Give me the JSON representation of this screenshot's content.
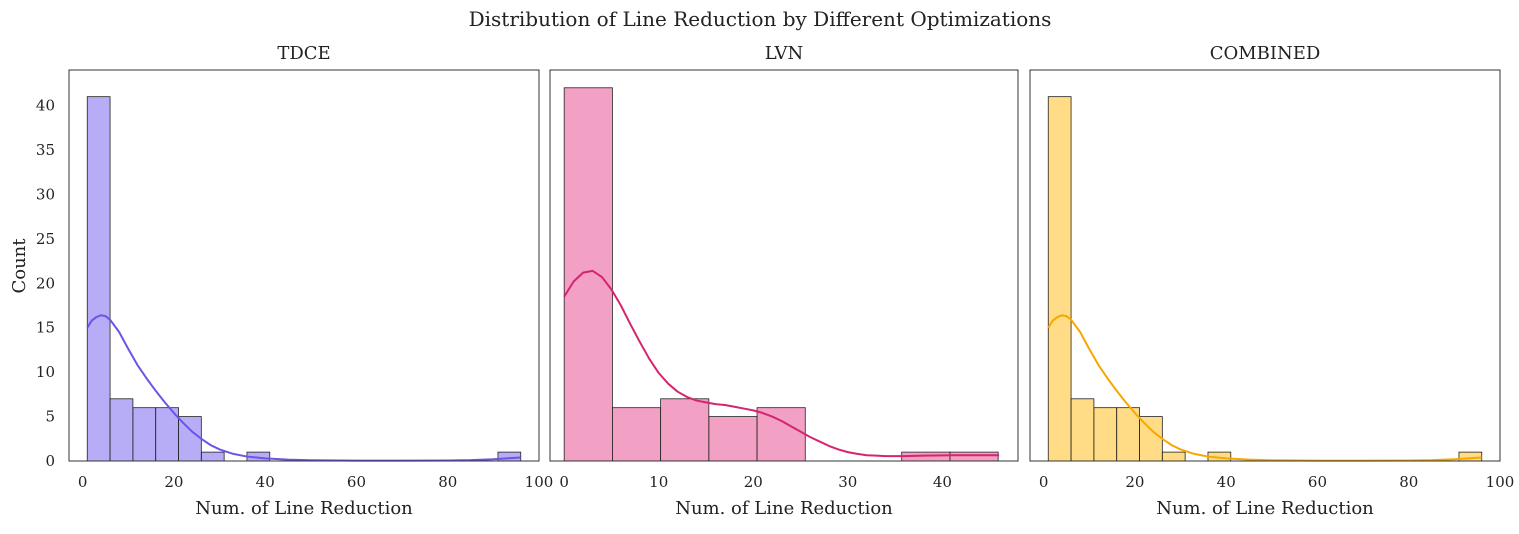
{
  "figure": {
    "title": "Distribution of Line Reduction by Different Optimizations",
    "ylabel": "Count"
  },
  "chart_data": [
    {
      "type": "bar",
      "title": "TDCE",
      "xlabel": "Num. of Line Reduction",
      "ylabel": "Count",
      "color": "#7b68ee",
      "xlim": [
        -3,
        100
      ],
      "ylim": [
        0,
        44
      ],
      "xticks": [
        0,
        20,
        40,
        60,
        80,
        100
      ],
      "yticks": [
        0,
        5,
        10,
        15,
        20,
        25,
        30,
        35,
        40
      ],
      "bin_edges": [
        1,
        6,
        11,
        16,
        21,
        26,
        31,
        36,
        41,
        46,
        51,
        56,
        61,
        66,
        71,
        76,
        81,
        86,
        91,
        96
      ],
      "counts": [
        41,
        7,
        6,
        6,
        5,
        1,
        0,
        1,
        0,
        0,
        0,
        0,
        0,
        0,
        0,
        0,
        0,
        0,
        1
      ],
      "kde": {
        "x": [
          1,
          2,
          3,
          4,
          5,
          6,
          8,
          10,
          12,
          14,
          16,
          18,
          20,
          22,
          24,
          26,
          28,
          30,
          33,
          36,
          40,
          45,
          50,
          60,
          70,
          80,
          85,
          90,
          93,
          96
        ],
        "y": [
          15.0,
          15.8,
          16.2,
          16.4,
          16.3,
          15.9,
          14.5,
          12.6,
          10.8,
          9.3,
          7.9,
          6.6,
          5.4,
          4.3,
          3.3,
          2.5,
          1.8,
          1.3,
          0.8,
          0.5,
          0.3,
          0.15,
          0.08,
          0.04,
          0.04,
          0.06,
          0.1,
          0.2,
          0.3,
          0.4
        ]
      }
    },
    {
      "type": "bar",
      "title": "LVN",
      "xlabel": "Num. of Line Reduction",
      "ylabel": "Count",
      "color": "#e75495",
      "xlim": [
        -1.5,
        48
      ],
      "ylim": [
        0,
        44
      ],
      "xticks": [
        0,
        10,
        20,
        30,
        40
      ],
      "yticks": [],
      "bin_edges": [
        0,
        5.1,
        10.2,
        15.3,
        20.4,
        25.5,
        30.6,
        35.7,
        40.8,
        45.9
      ],
      "counts": [
        42,
        6,
        7,
        5,
        6,
        0,
        0,
        1,
        1
      ],
      "kde": {
        "x": [
          0,
          1,
          2,
          3,
          4,
          5,
          6,
          7,
          8,
          9,
          10,
          11,
          12,
          13,
          14,
          15,
          16,
          17,
          18,
          19,
          20,
          21,
          22,
          23,
          24,
          25,
          26,
          27,
          28,
          29,
          30,
          31,
          32,
          33,
          34,
          35,
          36,
          37,
          38,
          39,
          40,
          41,
          42,
          43,
          44,
          45,
          46
        ],
        "y": [
          18.5,
          20.2,
          21.2,
          21.4,
          20.7,
          19.3,
          17.5,
          15.4,
          13.4,
          11.5,
          9.9,
          8.7,
          7.8,
          7.2,
          6.8,
          6.6,
          6.4,
          6.3,
          6.1,
          5.9,
          5.7,
          5.4,
          5.0,
          4.5,
          3.9,
          3.3,
          2.7,
          2.2,
          1.7,
          1.3,
          1.0,
          0.8,
          0.65,
          0.6,
          0.55,
          0.55,
          0.55,
          0.58,
          0.6,
          0.62,
          0.63,
          0.64,
          0.65,
          0.65,
          0.65,
          0.65,
          0.65
        ]
      }
    },
    {
      "type": "bar",
      "title": "COMBINED",
      "xlabel": "Num. of Line Reduction",
      "ylabel": "Count",
      "color": "#ffc020",
      "xlim": [
        -3,
        100
      ],
      "ylim": [
        0,
        44
      ],
      "xticks": [
        0,
        20,
        40,
        60,
        80,
        100
      ],
      "yticks": [],
      "bin_edges": [
        1,
        6,
        11,
        16,
        21,
        26,
        31,
        36,
        41,
        46,
        51,
        56,
        61,
        66,
        71,
        76,
        81,
        86,
        91,
        96
      ],
      "counts": [
        41,
        7,
        6,
        6,
        5,
        1,
        0,
        1,
        0,
        0,
        0,
        0,
        0,
        0,
        0,
        0,
        0,
        0,
        1
      ],
      "kde": {
        "x": [
          1,
          2,
          3,
          4,
          5,
          6,
          8,
          10,
          12,
          14,
          16,
          18,
          20,
          22,
          24,
          26,
          28,
          30,
          33,
          36,
          40,
          45,
          50,
          60,
          70,
          80,
          85,
          90,
          93,
          96
        ],
        "y": [
          15.0,
          15.8,
          16.2,
          16.4,
          16.3,
          15.9,
          14.5,
          12.6,
          10.8,
          9.3,
          7.9,
          6.6,
          5.4,
          4.3,
          3.3,
          2.5,
          1.8,
          1.3,
          0.8,
          0.5,
          0.3,
          0.15,
          0.08,
          0.04,
          0.04,
          0.06,
          0.1,
          0.2,
          0.3,
          0.4
        ]
      }
    }
  ],
  "colors": {
    "kde_lines": [
      "#6a55e8",
      "#d6246e",
      "#f7a800"
    ],
    "edge": "#222222",
    "frame": "#333333"
  }
}
